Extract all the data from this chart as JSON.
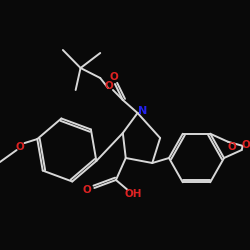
{
  "background_color": "#090909",
  "bond_color": "#d8d8d8",
  "atom_colors": {
    "O": "#dd2222",
    "N": "#2222ee",
    "C": "#d8d8d8"
  },
  "lw": 1.4,
  "figsize": [
    2.5,
    2.5
  ],
  "dpi": 100
}
